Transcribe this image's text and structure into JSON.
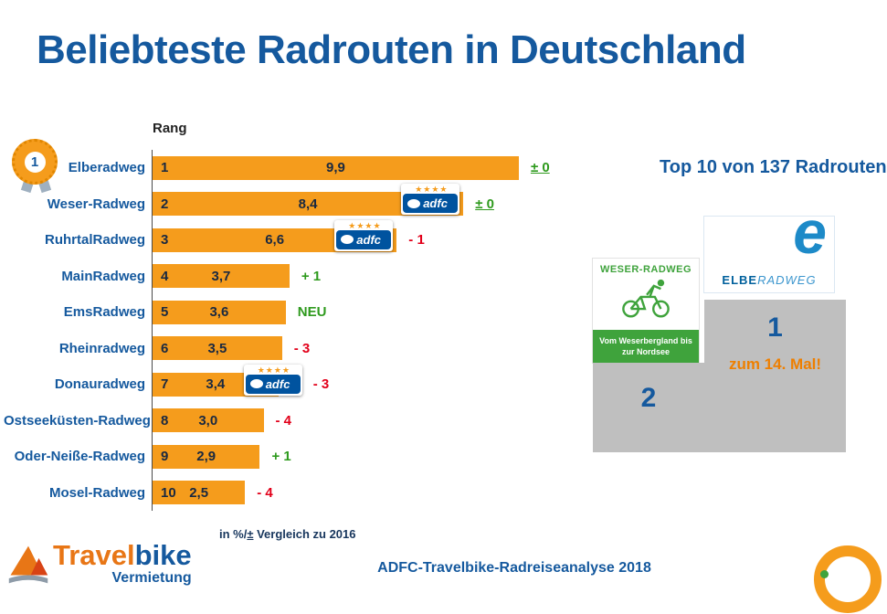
{
  "title": "Beliebteste Radrouten in Deutschland",
  "medal": {
    "number": "1"
  },
  "chart_data": {
    "type": "bar",
    "orientation": "horizontal",
    "title": "Beliebteste Radrouten in Deutschland",
    "rank_header": "Rang",
    "value_unit": "%",
    "xlim": [
      0,
      10
    ],
    "rows": [
      {
        "label": "Elberadweg",
        "rank": "1",
        "value": 9.9,
        "value_label": "9,9",
        "change": "± 0",
        "change_type": "neutral",
        "adfc": false
      },
      {
        "label": "Weser-Radweg",
        "rank": "2",
        "value": 8.4,
        "value_label": "8,4",
        "change": "± 0",
        "change_type": "neutral",
        "adfc": true
      },
      {
        "label": "RuhrtalRadweg",
        "rank": "3",
        "value": 6.6,
        "value_label": "6,6",
        "change": "- 1",
        "change_type": "negative",
        "adfc": true
      },
      {
        "label": "MainRadweg",
        "rank": "4",
        "value": 3.7,
        "value_label": "3,7",
        "change": "+ 1",
        "change_type": "positive",
        "adfc": false
      },
      {
        "label": "EmsRadweg",
        "rank": "5",
        "value": 3.6,
        "value_label": "3,6",
        "change": "NEU",
        "change_type": "positive",
        "adfc": false
      },
      {
        "label": "Rheinradweg",
        "rank": "6",
        "value": 3.5,
        "value_label": "3,5",
        "change": "- 3",
        "change_type": "negative",
        "adfc": false
      },
      {
        "label": "Donauradweg",
        "rank": "7",
        "value": 3.4,
        "value_label": "3,4",
        "change": "- 3",
        "change_type": "negative",
        "adfc": true
      },
      {
        "label": "Ostseeküsten-Radweg",
        "rank": "8",
        "value": 3.0,
        "value_label": "3,0",
        "change": "- 4",
        "change_type": "negative",
        "adfc": false
      },
      {
        "label": "Oder-Neiße-Radweg",
        "rank": "9",
        "value": 2.9,
        "value_label": "2,9",
        "change": "+ 1",
        "change_type": "positive",
        "adfc": false
      },
      {
        "label": "Mosel-Radweg",
        "rank": "10",
        "value": 2.5,
        "value_label": "2,5",
        "change": "- 4",
        "change_type": "negative",
        "adfc": false
      }
    ],
    "footnote_prefix": "in %/",
    "footnote_pm": "±",
    "footnote_suffix": " Vergleich zu 2016"
  },
  "badges": {
    "adfc_label": "adfc",
    "stars": "★★★★"
  },
  "right_panel": {
    "headline": "Top 10 von 137 Radrouten",
    "weser_logo": {
      "title": "WESER-RADWEG",
      "subtitle": "Vom Weserbergland bis zur Nordsee"
    },
    "elbe_logo": {
      "letter": "e",
      "title_bold": "ELBE",
      "title_light": "RADWEG"
    },
    "podium": {
      "first": "1",
      "second": "2",
      "note": "zum 14. Mal!"
    }
  },
  "footer": {
    "source": "ADFC-Travelbike-Radreiseanalyse 2018",
    "brand": {
      "part1": "Travel",
      "part2": "bike",
      "subtitle": "Vermietung"
    }
  },
  "colors": {
    "blue": "#15599E",
    "dark-text": "#1A2940",
    "orange": "#F59C1C",
    "green": "#2E9A1D",
    "red": "#E2001A",
    "adfc-blue": "#00539F",
    "podium-gray": "#BFBFBF",
    "weser-green": "#3FA33C",
    "elbe-blue": "#1D8AC8",
    "brand-orange": "#E87616",
    "note-orange": "#EE7F00"
  }
}
